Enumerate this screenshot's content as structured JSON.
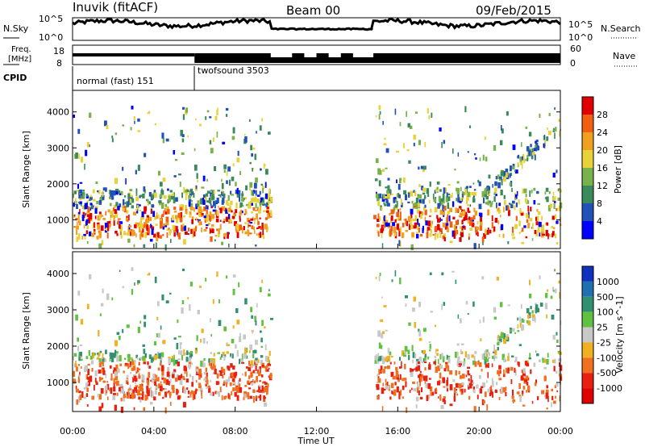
{
  "header": {
    "station": "Inuvik (fitACF)",
    "beam": "Beam 00",
    "date": "09/Feb/2015"
  },
  "panels": {
    "nsky": {
      "label": "N.Sky",
      "ticks": [
        "10^5",
        "10^0"
      ]
    },
    "nsearch": {
      "label": "N.Search",
      "ticks": [
        "10^5",
        "10^0"
      ]
    },
    "freq": {
      "label_line1": "Freq.",
      "label_line2": "[MHz]",
      "ticks": [
        "18",
        "8"
      ]
    },
    "nave": {
      "label": "Nave",
      "ticks": [
        "60",
        "0"
      ]
    },
    "cpid": {
      "label": "CPID",
      "modes": [
        {
          "name": "normal (fast) 151",
          "start": 0.0,
          "end": 6.0
        },
        {
          "name": "twofsound 3503",
          "start": 6.0,
          "end": 24.0
        }
      ]
    }
  },
  "chart_data": [
    {
      "type": "heatmap",
      "quantity": "Power",
      "xlabel": "",
      "ylabel": "Slant Range [km]",
      "xlim": [
        0,
        24
      ],
      "ylim": [
        200,
        4600
      ],
      "yticks": [
        1000,
        2000,
        3000,
        4000
      ],
      "colorbar": {
        "label": "Power [dB]",
        "ticks": [
          "4",
          "8",
          "12",
          "16",
          "20",
          "24",
          "28"
        ],
        "colors": [
          "#0000ff",
          "#2050b8",
          "#3a8a5a",
          "#79b24a",
          "#e8d23a",
          "#f0a020",
          "#f06010",
          "#e00000"
        ]
      },
      "echo_regions_hours": [
        [
          0,
          9.75
        ],
        [
          14.8,
          24
        ]
      ]
    },
    {
      "type": "heatmap",
      "quantity": "Velocity",
      "xlabel": "Time UT",
      "ylabel": "Slant Range [km]",
      "xlim": [
        0,
        24
      ],
      "ylim": [
        200,
        4600
      ],
      "yticks": [
        1000,
        2000,
        3000,
        4000
      ],
      "xticks": [
        "00:00",
        "04:00",
        "08:00",
        "12:00",
        "16:00",
        "20:00",
        "00:00"
      ],
      "colorbar": {
        "label": "Velocity [m s^-1]",
        "ticks": [
          "1000",
          "500",
          "100",
          "25",
          "-25",
          "-100",
          "-500",
          "-1000"
        ],
        "colors": [
          "#1030c0",
          "#2070b0",
          "#309070",
          "#60c040",
          "#c8c8c8",
          "#f0b020",
          "#f07020",
          "#e82010",
          "#e00000"
        ]
      },
      "echo_regions_hours": [
        [
          0,
          9.75
        ],
        [
          14.8,
          24
        ]
      ]
    }
  ]
}
